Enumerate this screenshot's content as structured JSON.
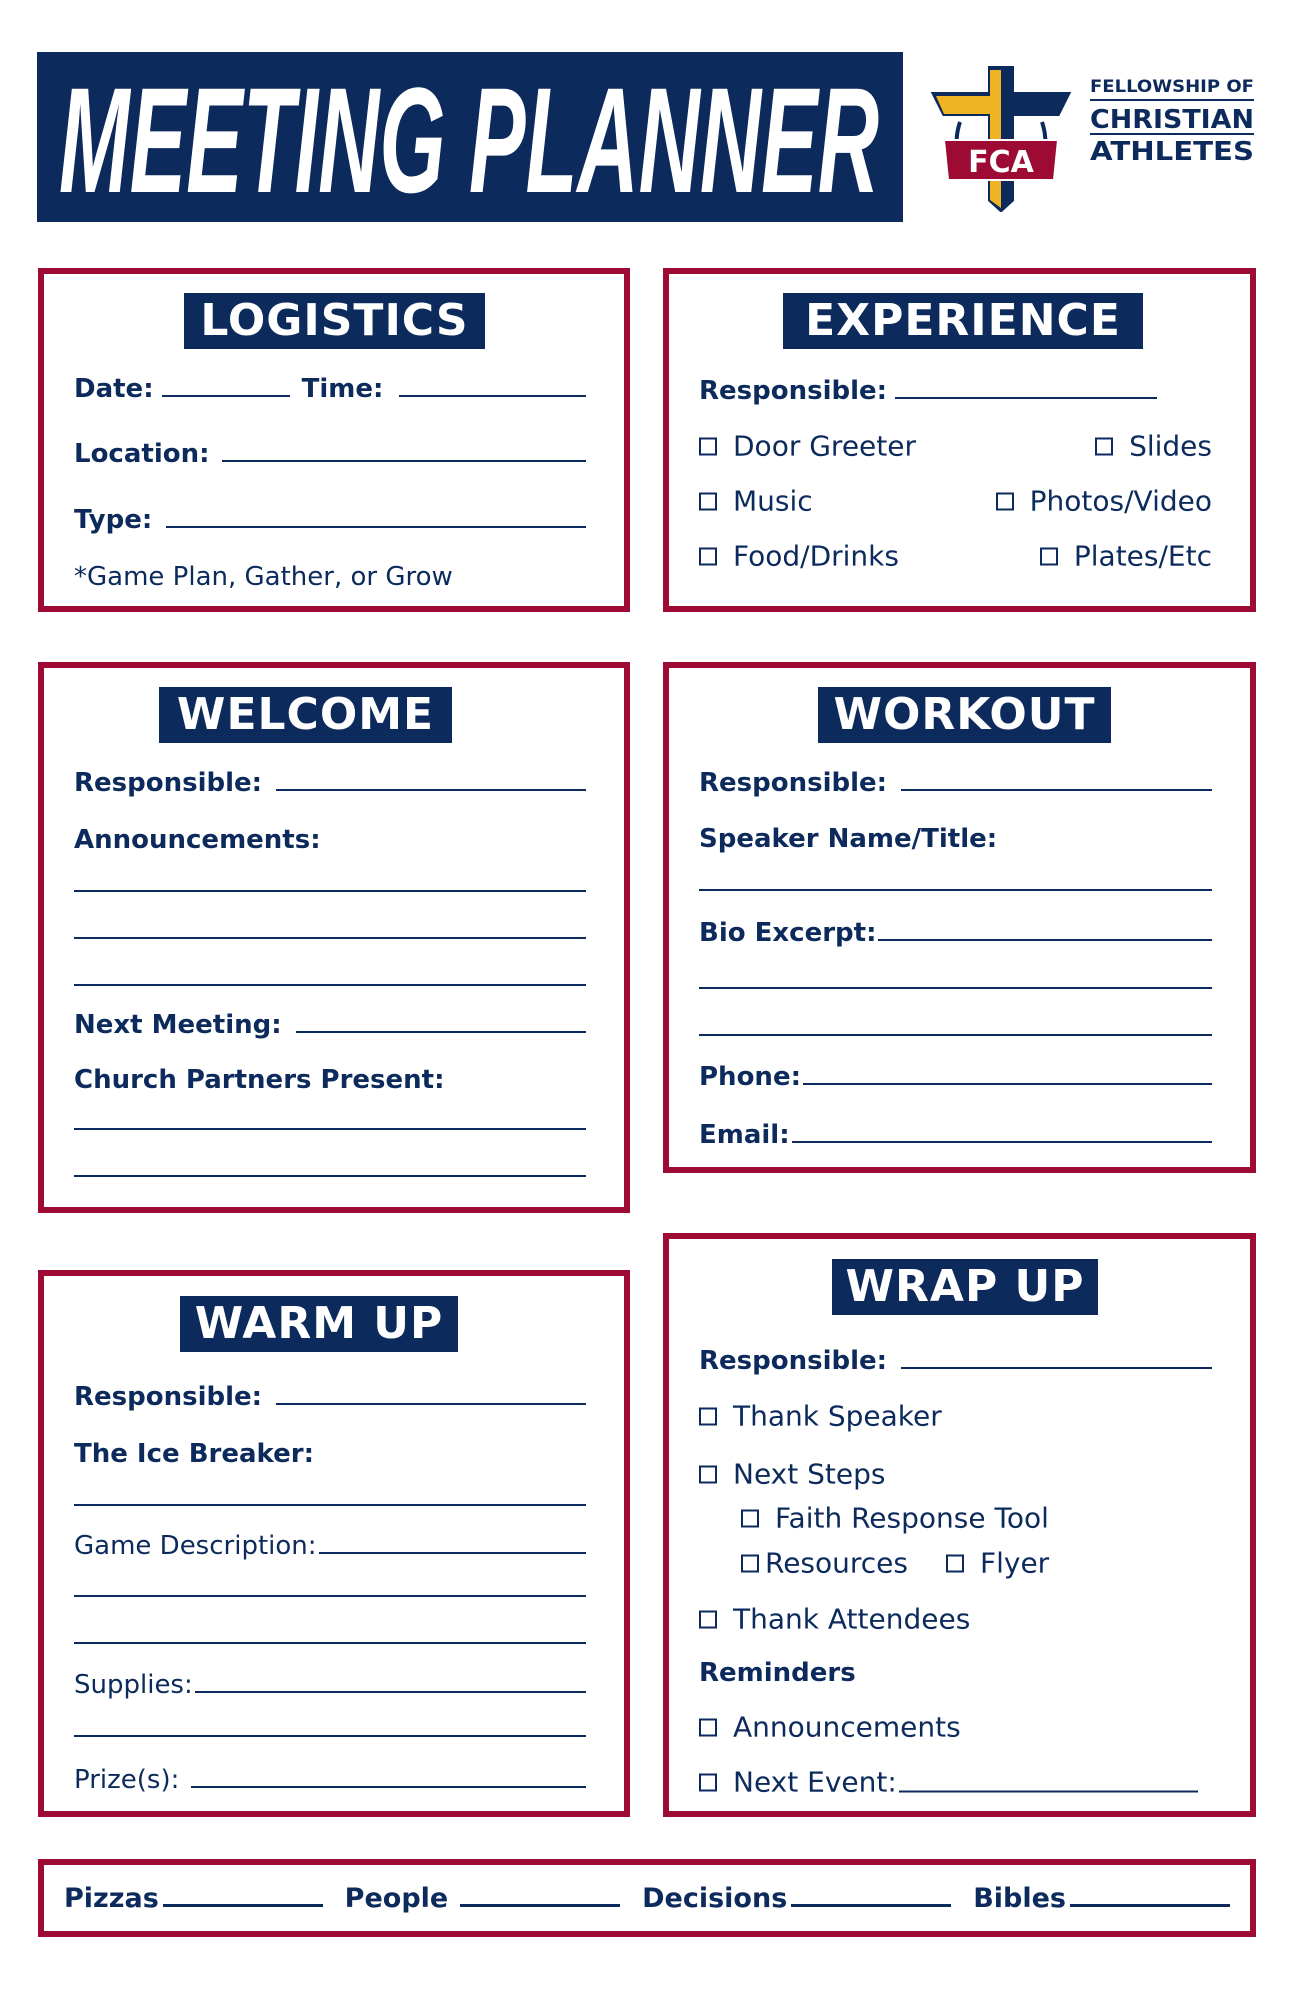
{
  "header": {
    "title": "MEETING PLANNER"
  },
  "logo": {
    "emblem_text": "FCA",
    "line1": "FELLOWSHIP OF",
    "line2": "CHRISTIAN",
    "line3": "ATHLETES"
  },
  "colors": {
    "navy": "#0c2a5b",
    "red": "#9d0b35",
    "gold": "#f0b323"
  },
  "logistics": {
    "title": "LOGISTICS",
    "date": "Date:",
    "time": "Time:",
    "location": "Location:",
    "type": "Type:",
    "note": "*Game Plan, Gather, or Grow"
  },
  "experience": {
    "title": "EXPERIENCE",
    "responsible": "Responsible:",
    "items": [
      "Door Greeter",
      "Slides",
      "Music",
      "Photos/Video",
      "Food/Drinks",
      "Plates/Etc"
    ]
  },
  "welcome": {
    "title": "WELCOME",
    "responsible": "Responsible:",
    "announcements": "Announcements:",
    "next_meeting": "Next Meeting:",
    "church_partners": "Church Partners Present:"
  },
  "workout": {
    "title": "WORKOUT",
    "responsible": "Responsible:",
    "speaker": "Speaker Name/Title:",
    "bio": "Bio Excerpt:",
    "phone": "Phone:",
    "email": "Email:"
  },
  "warmup": {
    "title": "WARM UP",
    "responsible": "Responsible:",
    "ice_breaker": "The Ice Breaker:",
    "game_description": "Game Description:",
    "supplies": "Supplies:",
    "prizes": "Prize(s):"
  },
  "wrapup": {
    "title": "WRAP UP",
    "responsible": "Responsible:",
    "thank_speaker": "Thank Speaker",
    "next_steps": "Next Steps",
    "faith_response": "Faith Response Tool",
    "resources": "Resources",
    "flyer": "Flyer",
    "thank_attendees": "Thank Attendees",
    "reminders": "Reminders",
    "announcements": "Announcements",
    "next_event": "Next Event:"
  },
  "footer": {
    "pizzas": "Pizzas",
    "people": "People",
    "decisions": "Decisions",
    "bibles": "Bibles"
  }
}
